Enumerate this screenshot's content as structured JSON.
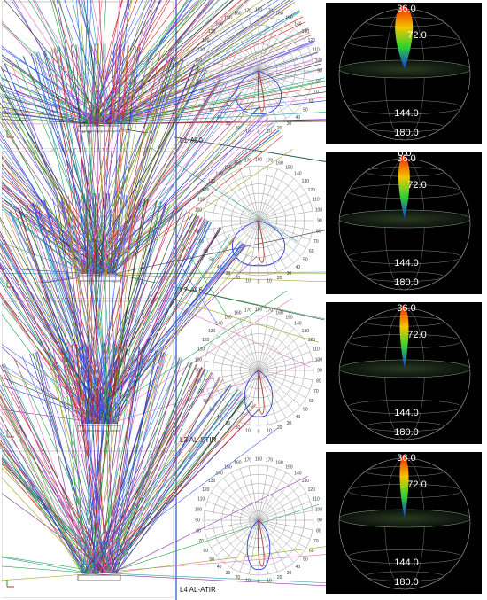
{
  "polar_angle_labels": [
    "0",
    "10",
    "20",
    "30",
    "40",
    "50",
    "60",
    "70",
    "80",
    "90",
    "100",
    "110",
    "120",
    "130",
    "140",
    "150",
    "160",
    "170",
    "180"
  ],
  "panels": [
    {
      "label": "L1-AL0",
      "sphere_labels": [
        "36.0",
        "72.0",
        "144.0",
        "180.0"
      ]
    },
    {
      "label": "L2-AL6",
      "sphere_labels": [
        "0.0",
        "36.0",
        "72.0",
        "144.0",
        "180.0"
      ]
    },
    {
      "label": "L3 AL-STIR",
      "sphere_labels": [
        "36.0",
        "72.0",
        "144.0",
        "180.0"
      ]
    },
    {
      "label": "L4 AL-ATIR",
      "sphere_labels": [
        "36.0",
        "72.0",
        "144.0",
        "180.0"
      ]
    }
  ]
}
